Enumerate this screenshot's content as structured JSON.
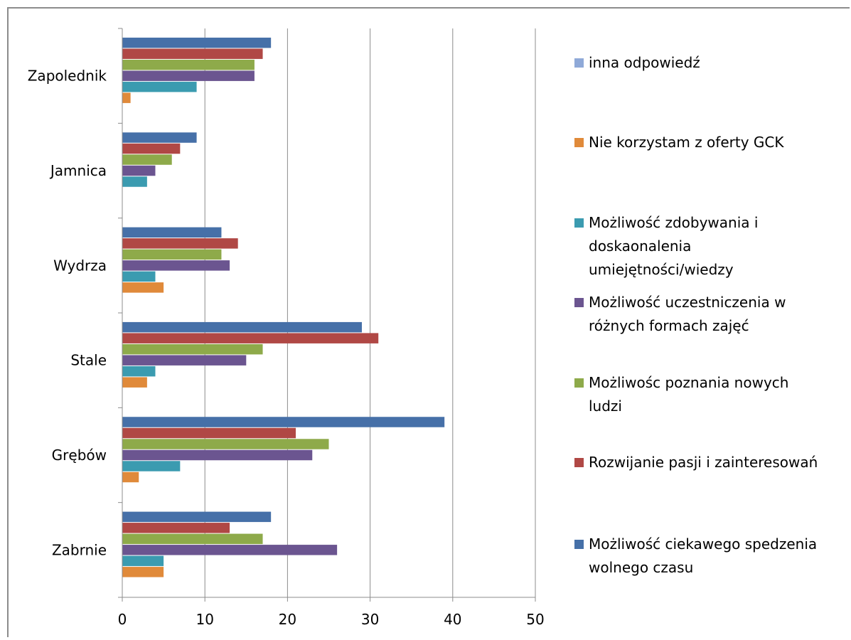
{
  "chart_data": {
    "type": "bar",
    "orientation": "horizontal",
    "categories": [
      "Zapolednik",
      "Jamnica",
      "Wydrza",
      "Stale",
      "Grębów",
      "Zabrnie"
    ],
    "series": [
      {
        "name": "inna odpowiedź",
        "color": "#8fa9d8",
        "values": [
          0,
          0,
          0,
          0,
          0,
          0
        ]
      },
      {
        "name": "Nie korzystam z oferty GCK",
        "color": "#e08a3a",
        "values": [
          1,
          0,
          5,
          3,
          2,
          5
        ]
      },
      {
        "name": "Możliwość zdobywania i doskaonalenia umiejętności/wiedzy",
        "color": "#3b9bb0",
        "values": [
          9,
          3,
          4,
          4,
          7,
          5
        ]
      },
      {
        "name": "Możliwość uczestniczenia w różnych formach zajęć",
        "color": "#6b5590",
        "values": [
          16,
          4,
          13,
          15,
          23,
          26
        ]
      },
      {
        "name": "Możliwośc poznania nowych ludzi",
        "color": "#8eaa4a",
        "values": [
          16,
          6,
          12,
          17,
          25,
          17
        ]
      },
      {
        "name": "Rozwijanie pasji i zainteresowań",
        "color": "#b04845",
        "values": [
          17,
          7,
          14,
          31,
          21,
          13
        ]
      },
      {
        "name": "Możliwość ciekawego spedzenia wolnego czasu",
        "color": "#4670a8",
        "values": [
          18,
          9,
          12,
          29,
          39,
          18
        ]
      }
    ],
    "xlim": [
      0,
      50
    ],
    "xticks": [
      0,
      10,
      20,
      30,
      40,
      50
    ],
    "grid": "vertical",
    "legend": {
      "position": "right",
      "entries": [
        {
          "series": 0,
          "lines": [
            "inna odpowiedź"
          ]
        },
        {
          "series": 1,
          "lines": [
            "Nie korzystam z oferty GCK"
          ]
        },
        {
          "series": 2,
          "lines": [
            "Możliwość zdobywania i",
            "doskaonalenia",
            "umiejętności/wiedzy"
          ]
        },
        {
          "series": 3,
          "lines": [
            "Możliwość uczestniczenia w",
            "różnych formach zajęć"
          ]
        },
        {
          "series": 4,
          "lines": [
            "Możliwośc poznania nowych",
            "ludzi"
          ]
        },
        {
          "series": 5,
          "lines": [
            "Rozwijanie pasji i zainteresowań"
          ]
        },
        {
          "series": 6,
          "lines": [
            "Możliwość ciekawego spedzenia",
            "wolnego czasu"
          ]
        }
      ]
    }
  }
}
